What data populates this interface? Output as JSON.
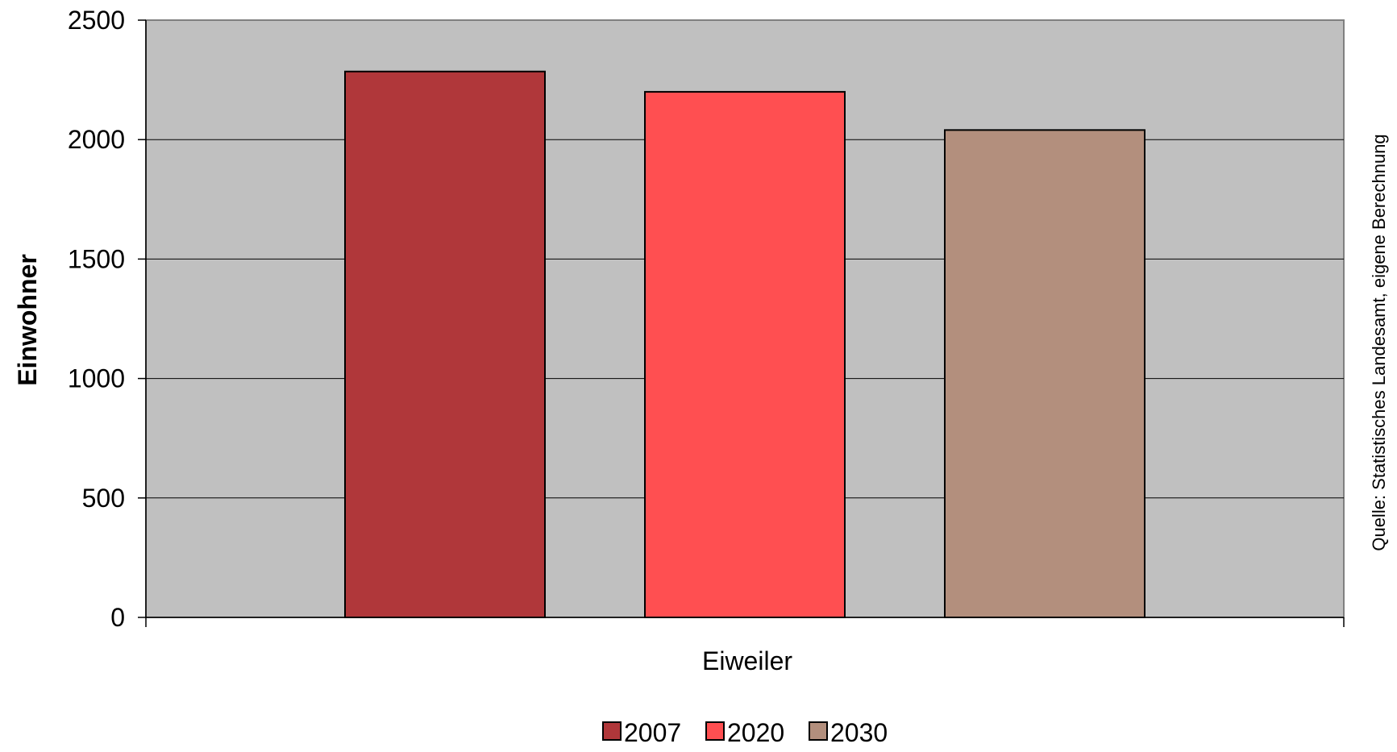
{
  "chart_data": {
    "type": "bar",
    "categories": [
      "Eiweiler"
    ],
    "series": [
      {
        "name": "2007",
        "values": [
          2285
        ],
        "color": "#B0373A"
      },
      {
        "name": "2020",
        "values": [
          2200
        ],
        "color": "#FF4F51"
      },
      {
        "name": "2030",
        "values": [
          2040
        ],
        "color": "#B38F7D"
      }
    ],
    "xlabel": "Eiweiler",
    "ylabel": "Einwohner",
    "ylim": [
      0,
      2500
    ],
    "yticks": [
      0,
      500,
      1000,
      1500,
      2000,
      2500
    ],
    "grid": true,
    "plot_background": "#C0C0C0",
    "legend_position": "bottom",
    "source": "Quelle: Statistisches Landesamt, eigene Berechnung"
  }
}
